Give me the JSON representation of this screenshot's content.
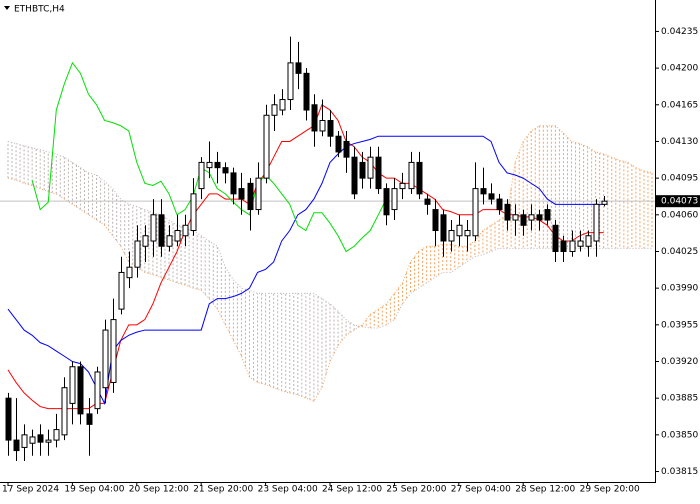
{
  "chart_data": {
    "type": "candlestick",
    "title": "ETHBTC,H4",
    "categories": [
      "17 Sep 2024",
      null,
      null,
      null,
      null,
      null,
      null,
      null,
      "19 Sep 04:00",
      null,
      null,
      null,
      null,
      null,
      null,
      null,
      "20 Sep 12:00",
      null,
      null,
      null,
      null,
      null,
      null,
      null,
      "21 Sep 20:00",
      null,
      null,
      null,
      null,
      null,
      null,
      null,
      "23 Sep 04:00",
      null,
      null,
      null,
      null,
      null,
      null,
      null,
      "24 Sep 12:00",
      null,
      null,
      null,
      null,
      null,
      null,
      null,
      "25 Sep 20:00",
      null,
      null,
      null,
      null,
      null,
      null,
      null,
      "27 Sep 04:00",
      null,
      null,
      null,
      null,
      null,
      null,
      null,
      "28 Sep 12:00",
      null,
      null,
      null,
      null,
      null,
      null,
      null,
      "29 Sep 20:00",
      null,
      null,
      null,
      null,
      null,
      null,
      null,
      null
    ],
    "open": [
      0.03885,
      0.03845,
      0.03838,
      0.03842,
      0.0385,
      0.03843,
      0.03845,
      0.0385,
      0.0388,
      0.03915,
      0.0387,
      0.03875,
      0.03895,
      0.039,
      0.0397,
      0.04,
      0.0401,
      0.0403,
      0.04035,
      0.0406,
      0.0403,
      0.04035,
      0.0404,
      0.04045,
      0.04085,
      0.04105,
      0.0411,
      0.04105,
      0.041,
      0.04085,
      0.0409,
      0.04065,
      0.04095,
      0.04155,
      0.0416,
      0.0417,
      0.04205,
      0.04195,
      0.04165,
      0.0414,
      0.0415,
      0.04135,
      0.0413,
      0.04115,
      0.0411,
      0.04095,
      0.04115,
      0.04085,
      0.04065,
      0.04085,
      0.04085,
      0.0411,
      0.04075,
      0.04065,
      0.0406,
      0.04035,
      0.0404,
      0.0404,
      0.0404,
      0.04085,
      0.0408,
      0.04075,
      0.0407,
      0.04055,
      0.0406,
      0.04055,
      0.0406,
      0.04065,
      0.0405,
      0.04035,
      0.04025,
      0.0403,
      0.0403,
      0.04035,
      0.0407,
      null,
      null,
      null,
      null,
      null,
      null
    ],
    "high": [
      0.0389,
      0.03885,
      0.0386,
      0.03855,
      0.0386,
      0.03855,
      0.0387,
      0.03905,
      0.0392,
      0.0392,
      0.03885,
      0.03915,
      0.0396,
      0.0398,
      0.0402,
      0.04025,
      0.0405,
      0.0405,
      0.04075,
      0.04075,
      0.0405,
      0.0406,
      0.0406,
      0.04095,
      0.04115,
      0.0413,
      0.0412,
      0.0411,
      0.04105,
      0.041,
      0.04095,
      0.0411,
      0.04165,
      0.04175,
      0.0418,
      0.0423,
      0.04225,
      0.042,
      0.04175,
      0.0417,
      0.0416,
      0.0414,
      0.0414,
      0.04125,
      0.0412,
      0.04125,
      0.04125,
      0.0409,
      0.04095,
      0.041,
      0.0412,
      0.0412,
      0.0408,
      0.04075,
      0.04065,
      0.04055,
      0.0406,
      0.04055,
      0.0411,
      0.04105,
      0.0409,
      0.0408,
      0.04075,
      0.0407,
      0.04065,
      0.0407,
      0.04065,
      0.0407,
      0.04055,
      0.0404,
      0.04045,
      0.04045,
      0.04045,
      0.04075,
      0.04078,
      null,
      null,
      null,
      null,
      null,
      null
    ],
    "low": [
      0.0383,
      0.03825,
      0.03825,
      0.0383,
      0.0383,
      0.0383,
      0.03838,
      0.03845,
      0.0386,
      0.0386,
      0.0383,
      0.0387,
      0.0388,
      0.0389,
      0.03965,
      0.0399,
      0.04,
      0.04015,
      0.0402,
      0.0402,
      0.04025,
      0.0403,
      0.0403,
      0.0404,
      0.04075,
      0.04095,
      0.0409,
      0.0409,
      0.0407,
      0.0406,
      0.04045,
      0.0406,
      0.0409,
      0.0414,
      0.04155,
      0.0416,
      0.0418,
      0.0415,
      0.04125,
      0.04135,
      0.04125,
      0.04115,
      0.041,
      0.04075,
      0.04085,
      0.04085,
      0.0408,
      0.0405,
      0.04055,
      0.04075,
      0.0408,
      0.04075,
      0.0406,
      0.0403,
      0.0402,
      0.04025,
      0.0403,
      0.04025,
      0.04035,
      0.0407,
      0.0407,
      0.0406,
      0.04045,
      0.0404,
      0.0404,
      0.04045,
      0.04045,
      0.0405,
      0.04015,
      0.04015,
      0.0402,
      0.04025,
      0.0402,
      0.0402,
      0.04068,
      null,
      null,
      null,
      null,
      null,
      null
    ],
    "close": [
      0.03845,
      0.03835,
      0.0385,
      0.03848,
      0.03843,
      0.03845,
      0.03855,
      0.03895,
      0.03915,
      0.0387,
      0.0386,
      0.0391,
      0.0395,
      0.0396,
      0.04005,
      0.0401,
      0.04035,
      0.0404,
      0.0406,
      0.0403,
      0.0404,
      0.04045,
      0.0405,
      0.0408,
      0.0411,
      0.0411,
      0.04105,
      0.041,
      0.0408,
      0.04075,
      0.04065,
      0.04095,
      0.04155,
      0.04165,
      0.0417,
      0.04205,
      0.04195,
      0.0416,
      0.0414,
      0.0415,
      0.04135,
      0.0412,
      0.04115,
      0.0408,
      0.04095,
      0.04115,
      0.04085,
      0.0406,
      0.04085,
      0.0409,
      0.0411,
      0.0408,
      0.0407,
      0.04045,
      0.04035,
      0.04045,
      0.0405,
      0.04045,
      0.04085,
      0.0408,
      0.04075,
      0.04065,
      0.04055,
      0.0406,
      0.0405,
      0.0406,
      0.04055,
      0.04055,
      0.04025,
      0.04025,
      0.04035,
      0.04035,
      0.0404,
      0.0407,
      0.04073,
      null,
      null,
      null,
      null,
      null,
      null
    ],
    "up_color": "#ffffff",
    "down_color": "#000000",
    "lines": [
      {
        "color": "#ff0000",
        "values": [
          0.03912,
          0.039,
          0.0389,
          0.03883,
          0.03877,
          0.03875,
          0.03875,
          0.03875,
          0.03875,
          0.03875,
          0.03875,
          0.0388,
          0.0388,
          0.0391,
          0.0394,
          0.03955,
          0.03955,
          0.0396,
          0.03975,
          0.03995,
          0.0401,
          0.04025,
          0.04045,
          0.0406,
          0.0407,
          0.0408,
          0.0408,
          0.04075,
          0.04075,
          0.04075,
          0.0407,
          0.0409,
          0.041,
          0.04115,
          0.0413,
          0.0413,
          0.04135,
          0.0414,
          0.04145,
          0.04165,
          0.0416,
          0.0415,
          0.0413,
          0.04125,
          0.04115,
          0.0411,
          0.041,
          0.04095,
          0.04095,
          0.0409,
          0.0409,
          0.04085,
          0.0408,
          0.04075,
          0.04065,
          0.04063,
          0.0406,
          0.0406,
          0.0406,
          0.04065,
          0.04065,
          0.04065,
          0.0406,
          0.0406,
          0.04058,
          0.04058,
          0.04055,
          0.0405,
          0.0404,
          0.04035,
          0.04035,
          0.0404,
          0.04043,
          0.04043,
          0.04043,
          null,
          null,
          null,
          null,
          null,
          null
        ]
      },
      {
        "color": "#0000ff",
        "values": [
          0.0397,
          0.0396,
          0.0395,
          0.03945,
          0.03938,
          0.03935,
          0.0393,
          0.03925,
          0.0392,
          0.03918,
          0.0391,
          0.03895,
          0.0388,
          0.0393,
          0.0394,
          0.03945,
          0.03948,
          0.0395,
          0.0395,
          0.0395,
          0.0395,
          0.0395,
          0.0395,
          0.0395,
          0.0395,
          0.03975,
          0.0398,
          0.0398,
          0.03982,
          0.03985,
          0.0399,
          0.04005,
          0.04008,
          0.04015,
          0.04035,
          0.04045,
          0.0406,
          0.04065,
          0.04075,
          0.0409,
          0.0411,
          0.04118,
          0.04125,
          0.04128,
          0.0413,
          0.04132,
          0.04135,
          0.04135,
          0.04135,
          0.04135,
          0.04135,
          0.04135,
          0.04135,
          0.04135,
          0.04135,
          0.04135,
          0.04135,
          0.04135,
          0.04135,
          0.04135,
          0.0413,
          0.0411,
          0.041,
          0.04098,
          0.04095,
          0.0409,
          0.04085,
          0.04075,
          0.0407,
          0.0407,
          0.0407,
          0.0407,
          0.0407,
          0.0407,
          0.0407,
          null,
          null,
          null,
          null,
          null,
          null
        ]
      },
      {
        "color": "#00e000",
        "values": [
          null,
          null,
          null,
          0.04093,
          0.04065,
          0.04072,
          0.0416,
          0.04185,
          0.04205,
          0.04195,
          0.04175,
          0.04165,
          0.0415,
          0.04148,
          0.04145,
          0.0414,
          0.0411,
          0.0409,
          0.04088,
          0.04092,
          0.0408,
          0.0406,
          0.04065,
          0.04078,
          0.04105,
          0.041,
          0.04085,
          0.0408,
          0.04072,
          0.04065,
          0.0406,
          0.0409,
          0.04098,
          0.0409,
          0.0408,
          0.0407,
          0.0405,
          0.04045,
          0.04062,
          0.04062,
          0.04052,
          0.0404,
          0.04025,
          0.0403,
          0.04038,
          0.04045,
          0.0406,
          0.04075,
          null,
          null,
          null,
          null,
          null,
          null,
          null,
          null,
          null,
          null,
          null,
          null,
          null,
          null,
          null,
          null,
          null,
          null,
          null,
          null,
          null,
          null,
          null,
          null,
          null,
          null,
          null,
          null,
          null,
          null,
          null,
          null,
          null
        ]
      }
    ],
    "cloud": {
      "a": {
        "color": "#f4a460",
        "values": [
          0.04095,
          0.04093,
          0.0409,
          0.04088,
          0.04085,
          0.04082,
          0.0408,
          0.04075,
          0.0407,
          0.04065,
          0.0406,
          0.04055,
          0.0405,
          0.0404,
          0.0403,
          0.04015,
          0.0401,
          0.04005,
          0.04003,
          0.04,
          0.03998,
          0.03995,
          0.03993,
          0.0399,
          0.03988,
          0.0398,
          0.0397,
          0.03955,
          0.0394,
          0.03925,
          0.03905,
          0.039,
          0.03898,
          0.03895,
          0.03892,
          0.0389,
          0.03888,
          0.03885,
          0.03882,
          0.03895,
          0.0392,
          0.03935,
          0.03945,
          0.0395,
          0.03955,
          0.03965,
          0.0397,
          0.03975,
          0.03985,
          0.03995,
          0.04015,
          0.04025,
          0.0403,
          0.0403,
          0.04032,
          0.04032,
          0.0403,
          0.0403,
          0.04035,
          0.04045,
          0.0405,
          0.04055,
          0.0406,
          0.0411,
          0.0413,
          0.0414,
          0.04145,
          0.04145,
          0.04145,
          0.04138,
          0.0413,
          0.04128,
          0.04125,
          0.0412,
          0.04118,
          0.04115,
          0.04112,
          0.0411,
          0.04105,
          0.04102,
          0.041
        ]
      },
      "b": {
        "color": "#bdb3b3",
        "values": [
          0.0413,
          0.04128,
          0.04126,
          0.04124,
          0.04122,
          0.0412,
          0.04118,
          0.04115,
          0.0411,
          0.04105,
          0.041,
          0.04098,
          0.04092,
          0.04085,
          0.04075,
          0.0407,
          0.04068,
          0.04065,
          0.04062,
          0.0406,
          0.04055,
          0.0405,
          0.04048,
          0.04045,
          0.0404,
          0.04035,
          0.0403,
          0.0401,
          0.03998,
          0.0399,
          0.03988,
          0.03985,
          0.03985,
          0.03985,
          0.03985,
          0.03985,
          0.03985,
          0.03985,
          0.03985,
          0.0398,
          0.03975,
          0.03968,
          0.0396,
          0.03955,
          0.03953,
          0.03952,
          0.03952,
          0.03955,
          0.0396,
          0.03975,
          0.03985,
          0.0399,
          0.03995,
          0.04,
          0.04005,
          0.04005,
          0.0401,
          0.04015,
          0.0402,
          0.04022,
          0.04025,
          0.04028,
          0.04028,
          0.04028,
          0.04028,
          0.04028,
          0.04028,
          0.04028,
          0.04028,
          0.04028,
          0.04028,
          0.04028,
          0.04028,
          0.04028,
          0.04028,
          0.04028,
          0.04028,
          0.04028,
          0.04028,
          0.04028,
          0.04028
        ]
      }
    },
    "last_price": 0.04073,
    "last_price_line_color": "#c0c0c0",
    "ylim": [
      0.03805,
      0.04265
    ],
    "yticks": [
      0.04235,
      {
        "value": 0.042,
        "label": "0.04200"
      },
      0.04165,
      {
        "value": 0.0413,
        "label": "0.04130"
      },
      0.04095,
      {
        "value": 0.0406,
        "label": "0.04060"
      },
      0.04025,
      {
        "value": 0.0399,
        "label": "0.03990"
      },
      0.03955,
      {
        "value": 0.0392,
        "label": "0.03920"
      },
      0.03885,
      {
        "value": 0.0385,
        "label": "0.03850"
      },
      0.03815
    ]
  }
}
